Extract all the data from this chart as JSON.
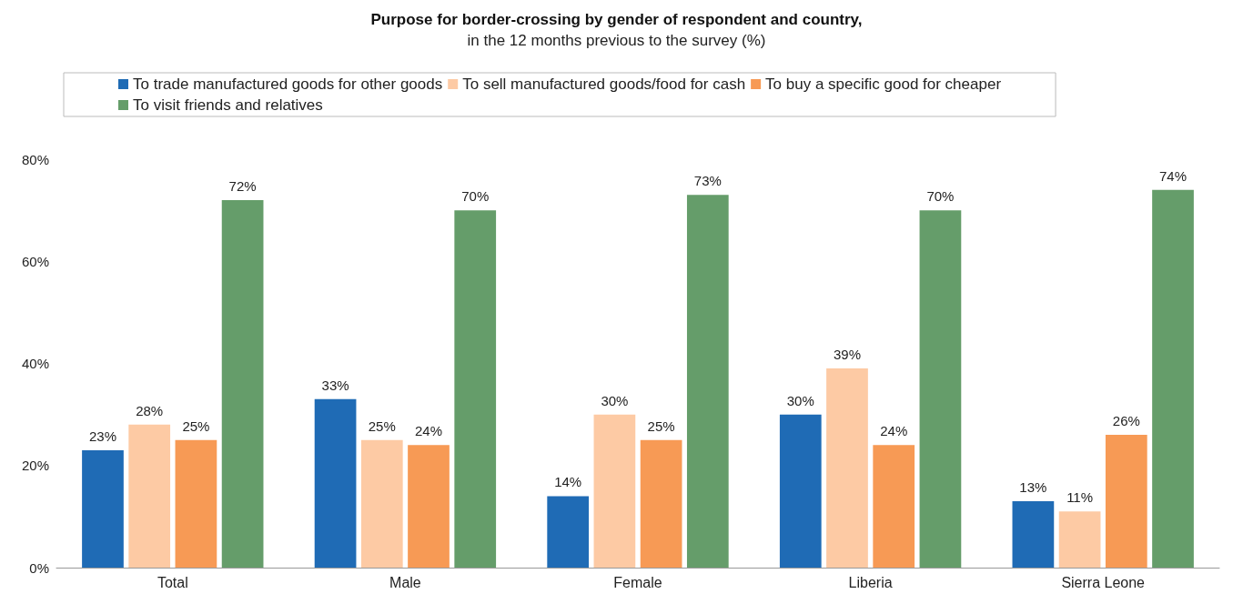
{
  "chart_data": {
    "type": "bar",
    "title": "Purpose for border-crossing by gender of respondent and country,",
    "subtitle": "in the 12 months previous to the survey (%)",
    "categories": [
      "Total",
      "Male",
      "Female",
      "Liberia",
      "Sierra Leone"
    ],
    "series": [
      {
        "name": "To trade manufactured goods for other goods",
        "color": "#1f6bb5",
        "values": [
          23,
          33,
          14,
          30,
          13
        ],
        "value_labels": [
          "23%",
          "33%",
          "14%",
          "30%",
          "13%"
        ]
      },
      {
        "name": "To sell manufactured goods/food for cash",
        "color": "#fdcaa4",
        "values": [
          28,
          25,
          30,
          39,
          11
        ],
        "value_labels": [
          "28%",
          "25%",
          "30%",
          "39%",
          "11%"
        ]
      },
      {
        "name": "To buy a specific good for cheaper",
        "color": "#f79a55",
        "values": [
          25,
          24,
          25,
          24,
          26
        ],
        "value_labels": [
          "25%",
          "24%",
          "25%",
          "24%",
          "26%"
        ]
      },
      {
        "name": "To visit friends and relatives",
        "color": "#659d6a",
        "values": [
          72,
          70,
          73,
          70,
          74
        ],
        "value_labels": [
          "72%",
          "70%",
          "73%",
          "70%",
          "74%"
        ]
      }
    ],
    "ylim": [
      0,
      80
    ],
    "yticks": [
      {
        "value": 0,
        "label": "0%"
      },
      {
        "value": 20,
        "label": "20%"
      },
      {
        "value": 40,
        "label": "40%"
      },
      {
        "value": 60,
        "label": "60%"
      },
      {
        "value": 80,
        "label": "80%"
      }
    ],
    "grid": false,
    "legend": "top"
  }
}
